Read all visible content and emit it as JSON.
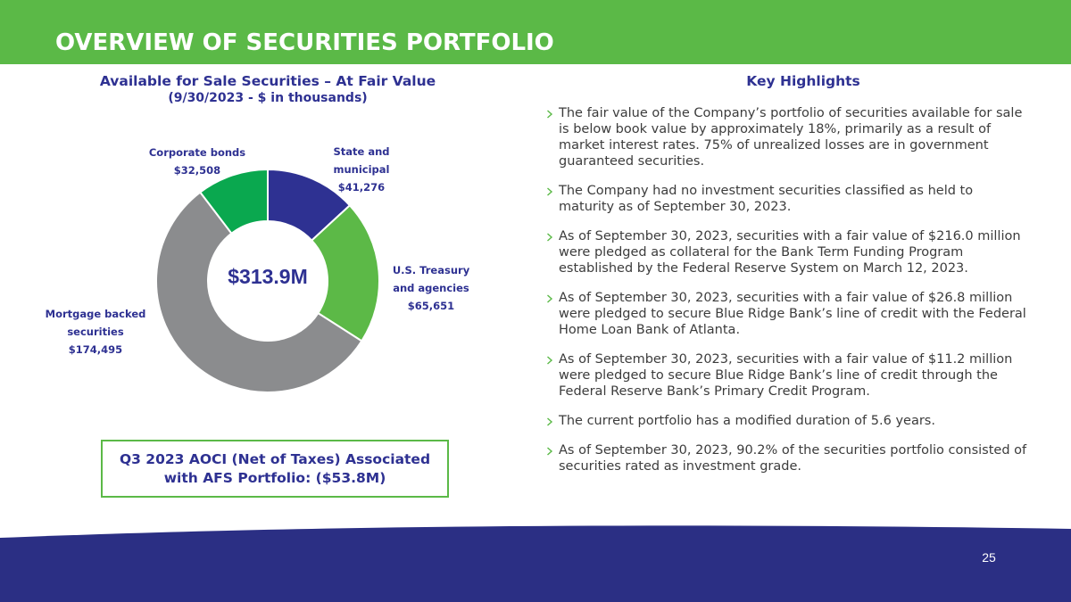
{
  "header": {
    "title": "OVERVIEW OF SECURITIES PORTFOLIO"
  },
  "theme": {
    "header_green": "#5bb947",
    "navy": "#2e3192",
    "body_text": "#3c3c3c",
    "footer_navy": "#2b2f84",
    "bullet_chevron": "#5bb947"
  },
  "chart_data": {
    "type": "pie",
    "title": "Available for Sale Securities – At Fair Value",
    "subtitle": "(9/30/2023 - $ in thousands)",
    "categories": [
      "State and municipal",
      "U.S. Treasury and agencies",
      "Mortgage backed securities",
      "Corporate bonds"
    ],
    "values": [
      41276,
      65651,
      174495,
      32508
    ],
    "data_labels": [
      "$41,276",
      "$65,651",
      "$174,495",
      "$32,508"
    ],
    "center_label": "$313.9M",
    "colors": [
      "#2e3192",
      "#5cb947",
      "#8b8c8e",
      "#0aa84f"
    ]
  },
  "aoci_box": {
    "text": "Q3 2023 AOCI (Net of Taxes) Associated with AFS Portfolio: ($53.8M)"
  },
  "highlights": {
    "title": "Key Highlights",
    "bullet_icon": "chevron-right-icon",
    "bullets": [
      {
        "lines": [
          "The fair value of the Company’s portfolio of securities available for sale",
          "is below book value by approximately 18%, primarily as a result of",
          "market interest rates. 75% of unrealized losses are in government",
          "guaranteed securities."
        ]
      },
      {
        "lines": [
          "The Company had no investment securities classified as held to",
          "maturity as of September 30, 2023."
        ]
      },
      {
        "lines": [
          "As of September 30, 2023, securities with a fair value of $216.0 million",
          "were pledged as collateral for the Bank Term Funding Program",
          "established by the Federal Reserve System on March 12, 2023."
        ]
      },
      {
        "lines": [
          "As of September 30, 2023, securities with a fair value of $26.8 million",
          "were pledged to secure Blue Ridge Bank’s line of credit with the Federal",
          "Home Loan Bank of Atlanta."
        ]
      },
      {
        "lines": [
          "As of September 30, 2023, securities with a fair value of $11.2 million",
          "were pledged to secure Blue Ridge Bank’s line of credit through the",
          "Federal Reserve Bank’s Primary Credit Program."
        ]
      },
      {
        "lines": [
          "The current portfolio has a modified duration of 5.6 years."
        ]
      },
      {
        "lines": [
          "As of September 30, 2023, 90.2% of the securities portfolio consisted of",
          "securities rated as investment grade."
        ]
      }
    ]
  },
  "footer": {
    "page_number": "25"
  }
}
